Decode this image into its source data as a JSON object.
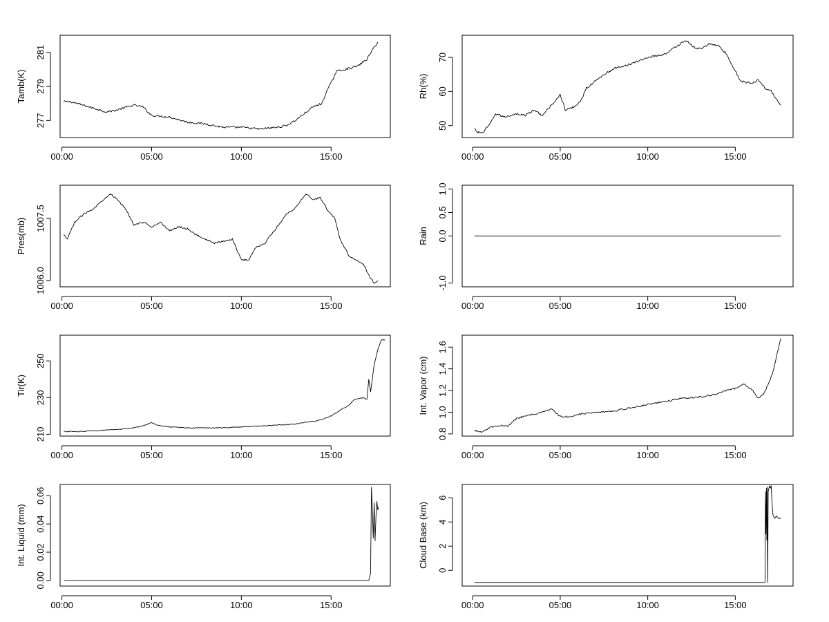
{
  "chart_data": [
    {
      "type": "line",
      "ylabel": "Tamb(K)",
      "xlabel": "",
      "x_ticks": [
        "00:00",
        "05:00",
        "10:00",
        "15:00"
      ],
      "x_range_hours": [
        -0.1,
        18.3
      ],
      "ylim": [
        276.0,
        282.0
      ],
      "y_ticks": [
        "277",
        "279",
        "281"
      ],
      "noise": 0.06,
      "series": [
        {
          "points": [
            [
              0.1,
              278.1
            ],
            [
              0.5,
              278.1
            ],
            [
              1.5,
              277.8
            ],
            [
              2.5,
              277.5
            ],
            [
              3.0,
              277.6
            ],
            [
              4.0,
              277.9
            ],
            [
              4.5,
              277.8
            ],
            [
              5.0,
              277.3
            ],
            [
              6.0,
              277.2
            ],
            [
              7.0,
              276.9
            ],
            [
              8.0,
              276.8
            ],
            [
              9.0,
              276.6
            ],
            [
              10.0,
              276.6
            ],
            [
              11.0,
              276.5
            ],
            [
              12.0,
              276.6
            ],
            [
              12.5,
              276.7
            ],
            [
              13.0,
              277.0
            ],
            [
              13.5,
              277.4
            ],
            [
              14.0,
              277.8
            ],
            [
              14.5,
              278.0
            ],
            [
              14.7,
              278.6
            ],
            [
              15.0,
              279.2
            ],
            [
              15.3,
              279.9
            ],
            [
              15.8,
              280.0
            ],
            [
              16.5,
              280.2
            ],
            [
              17.0,
              280.6
            ],
            [
              17.4,
              281.3
            ],
            [
              17.6,
              281.6
            ]
          ]
        }
      ]
    },
    {
      "type": "line",
      "ylabel": "Rh(%)",
      "xlabel": "",
      "x_ticks": [
        "00:00",
        "05:00",
        "10:00",
        "15:00"
      ],
      "x_range_hours": [
        -0.6,
        18.3
      ],
      "ylim": [
        46.5,
        76.5
      ],
      "y_ticks": [
        "50",
        "60",
        "70"
      ],
      "noise": 0.3,
      "series": [
        {
          "points": [
            [
              0.1,
              49.0
            ],
            [
              0.3,
              48.0
            ],
            [
              0.6,
              48.0
            ],
            [
              1.0,
              50.5
            ],
            [
              1.3,
              53.5
            ],
            [
              1.8,
              52.5
            ],
            [
              2.5,
              53.5
            ],
            [
              3.0,
              53.0
            ],
            [
              3.5,
              54.5
            ],
            [
              4.0,
              53.0
            ],
            [
              4.5,
              56.0
            ],
            [
              5.0,
              59.0
            ],
            [
              5.3,
              54.5
            ],
            [
              5.8,
              55.5
            ],
            [
              6.2,
              57.5
            ],
            [
              6.5,
              61.0
            ],
            [
              7.5,
              65.0
            ],
            [
              8.2,
              67.0
            ],
            [
              9.0,
              68.0
            ],
            [
              10.0,
              70.0
            ],
            [
              11.0,
              71.0
            ],
            [
              12.0,
              74.5
            ],
            [
              12.2,
              75.0
            ],
            [
              12.6,
              73.0
            ],
            [
              13.0,
              72.5
            ],
            [
              13.5,
              74.0
            ],
            [
              14.0,
              73.5
            ],
            [
              14.5,
              71.0
            ],
            [
              15.0,
              66.0
            ],
            [
              15.3,
              63.0
            ],
            [
              16.0,
              62.5
            ],
            [
              16.3,
              63.5
            ],
            [
              16.7,
              61.0
            ],
            [
              17.0,
              60.5
            ],
            [
              17.3,
              58.0
            ],
            [
              17.6,
              56.0
            ]
          ]
        }
      ]
    },
    {
      "type": "line",
      "ylabel": "Pres(mb)",
      "xlabel": "",
      "x_ticks": [
        "00:00",
        "05:00",
        "10:00",
        "15:00"
      ],
      "x_range_hours": [
        -0.1,
        18.3
      ],
      "ylim": [
        1005.85,
        1008.3
      ],
      "y_ticks": [
        "1006.0",
        "1007.5"
      ],
      "noise": 0.02,
      "series": [
        {
          "points": [
            [
              0.1,
              1007.1
            ],
            [
              0.3,
              1007.0
            ],
            [
              0.7,
              1007.4
            ],
            [
              1.2,
              1007.6
            ],
            [
              1.8,
              1007.75
            ],
            [
              2.3,
              1007.95
            ],
            [
              2.7,
              1008.1
            ],
            [
              3.2,
              1007.9
            ],
            [
              3.6,
              1007.7
            ],
            [
              4.0,
              1007.35
            ],
            [
              4.6,
              1007.4
            ],
            [
              5.0,
              1007.3
            ],
            [
              5.5,
              1007.4
            ],
            [
              6.0,
              1007.2
            ],
            [
              6.5,
              1007.3
            ],
            [
              7.0,
              1007.25
            ],
            [
              7.5,
              1007.1
            ],
            [
              8.0,
              1007.0
            ],
            [
              8.5,
              1006.9
            ],
            [
              9.0,
              1006.95
            ],
            [
              9.5,
              1007.0
            ],
            [
              10.0,
              1006.5
            ],
            [
              10.4,
              1006.5
            ],
            [
              10.8,
              1006.8
            ],
            [
              11.3,
              1006.9
            ],
            [
              12.0,
              1007.3
            ],
            [
              12.5,
              1007.6
            ],
            [
              13.0,
              1007.75
            ],
            [
              13.6,
              1008.1
            ],
            [
              14.0,
              1007.95
            ],
            [
              14.4,
              1008.0
            ],
            [
              14.8,
              1007.7
            ],
            [
              15.2,
              1007.5
            ],
            [
              15.5,
              1007.0
            ],
            [
              16.0,
              1006.6
            ],
            [
              16.4,
              1006.5
            ],
            [
              16.8,
              1006.4
            ],
            [
              17.2,
              1006.05
            ],
            [
              17.4,
              1005.95
            ],
            [
              17.6,
              1006.0
            ]
          ]
        }
      ]
    },
    {
      "type": "line",
      "ylabel": "Rain",
      "xlabel": "",
      "x_ticks": [
        "00:00",
        "05:00",
        "10:00",
        "15:00"
      ],
      "x_range_hours": [
        -0.6,
        18.3
      ],
      "ylim": [
        -1.08,
        1.08
      ],
      "y_ticks": [
        "-1.0",
        "0.0",
        "0.5",
        "1.0"
      ],
      "y_tick_values": [
        -1.0,
        0.0,
        0.5,
        1.0
      ],
      "noise": 0,
      "series": [
        {
          "points": [
            [
              0.1,
              0.0
            ],
            [
              17.6,
              0.0
            ]
          ]
        }
      ]
    },
    {
      "type": "line",
      "ylabel": "Tir(K)",
      "xlabel": "",
      "x_ticks": [
        "00:00",
        "05:00",
        "10:00",
        "15:00"
      ],
      "x_range_hours": [
        -0.1,
        18.3
      ],
      "ylim": [
        209,
        264
      ],
      "y_ticks": [
        "210",
        "230",
        "250"
      ],
      "noise": 0.2,
      "series": [
        {
          "points": [
            [
              0.1,
              211.5
            ],
            [
              1.0,
              211.5
            ],
            [
              2.0,
              212.0
            ],
            [
              3.0,
              212.5
            ],
            [
              4.0,
              213.5
            ],
            [
              4.5,
              214.5
            ],
            [
              5.0,
              216.5
            ],
            [
              5.3,
              215.0
            ],
            [
              6.0,
              214.0
            ],
            [
              7.0,
              213.5
            ],
            [
              8.0,
              213.5
            ],
            [
              9.0,
              213.5
            ],
            [
              10.0,
              214.0
            ],
            [
              11.0,
              214.5
            ],
            [
              12.0,
              215.0
            ],
            [
              13.0,
              215.5
            ],
            [
              13.5,
              216.5
            ],
            [
              14.0,
              217.0
            ],
            [
              14.5,
              218.0
            ],
            [
              15.0,
              220.0
            ],
            [
              15.5,
              223.0
            ],
            [
              16.0,
              226.0
            ],
            [
              16.3,
              229.0
            ],
            [
              16.8,
              230.0
            ],
            [
              17.0,
              229.0
            ],
            [
              17.1,
              240.0
            ],
            [
              17.2,
              233.0
            ],
            [
              17.4,
              248.0
            ],
            [
              17.6,
              256.0
            ],
            [
              17.8,
              261.5
            ],
            [
              18.0,
              261.5
            ]
          ]
        }
      ]
    },
    {
      "type": "line",
      "ylabel": "Int. Vapor (cm)",
      "xlabel": "",
      "x_ticks": [
        "00:00",
        "05:00",
        "10:00",
        "15:00"
      ],
      "x_range_hours": [
        -0.6,
        18.3
      ],
      "ylim": [
        0.78,
        1.71
      ],
      "y_ticks": [
        "0.8",
        "1.0",
        "1.2",
        "1.4",
        "1.6"
      ],
      "noise": 0.007,
      "series": [
        {
          "points": [
            [
              0.1,
              0.83
            ],
            [
              0.5,
              0.82
            ],
            [
              1.0,
              0.86
            ],
            [
              1.5,
              0.88
            ],
            [
              2.0,
              0.87
            ],
            [
              2.5,
              0.94
            ],
            [
              3.0,
              0.97
            ],
            [
              3.5,
              0.98
            ],
            [
              4.0,
              1.0
            ],
            [
              4.5,
              1.03
            ],
            [
              5.0,
              0.96
            ],
            [
              5.5,
              0.96
            ],
            [
              6.0,
              0.98
            ],
            [
              7.0,
              1.0
            ],
            [
              8.0,
              1.01
            ],
            [
              9.0,
              1.04
            ],
            [
              10.0,
              1.07
            ],
            [
              11.0,
              1.1
            ],
            [
              12.0,
              1.13
            ],
            [
              13.0,
              1.14
            ],
            [
              14.0,
              1.17
            ],
            [
              14.5,
              1.2
            ],
            [
              15.0,
              1.22
            ],
            [
              15.5,
              1.26
            ],
            [
              16.0,
              1.2
            ],
            [
              16.3,
              1.13
            ],
            [
              16.6,
              1.16
            ],
            [
              17.0,
              1.3
            ],
            [
              17.2,
              1.4
            ],
            [
              17.4,
              1.55
            ],
            [
              17.6,
              1.68
            ]
          ]
        }
      ]
    },
    {
      "type": "line",
      "ylabel": "Int. Liquid (mm)",
      "xlabel": "",
      "x_ticks": [
        "00:00",
        "05:00",
        "10:00",
        "15:00"
      ],
      "x_range_hours": [
        -0.1,
        18.3
      ],
      "ylim": [
        -0.004,
        0.068
      ],
      "y_ticks": [
        "0.00",
        "0.02",
        "0.04",
        "0.06"
      ],
      "noise": 0,
      "series": [
        {
          "points": [
            [
              0.1,
              0.0
            ],
            [
              17.1,
              0.0
            ],
            [
              17.2,
              0.005
            ],
            [
              17.25,
              0.066
            ],
            [
              17.3,
              0.05
            ],
            [
              17.35,
              0.03
            ],
            [
              17.4,
              0.055
            ],
            [
              17.45,
              0.028
            ],
            [
              17.5,
              0.045
            ],
            [
              17.55,
              0.056
            ],
            [
              17.6,
              0.05
            ],
            [
              17.65,
              0.052
            ]
          ]
        }
      ]
    },
    {
      "type": "line",
      "ylabel": "Cloud Base (km)",
      "xlabel": "",
      "x_ticks": [
        "00:00",
        "05:00",
        "10:00",
        "15:00"
      ],
      "x_range_hours": [
        -0.6,
        18.3
      ],
      "ylim": [
        -1.3,
        7.1
      ],
      "y_ticks": [
        "0",
        "2",
        "4",
        "6"
      ],
      "noise": 0,
      "series": [
        {
          "points": [
            [
              0.1,
              -1.0
            ],
            [
              16.7,
              -1.0
            ],
            [
              16.72,
              6.5
            ],
            [
              16.75,
              3.0
            ],
            [
              16.78,
              6.8
            ],
            [
              16.8,
              2.5
            ],
            [
              16.82,
              6.9
            ],
            [
              16.85,
              -1.0
            ],
            [
              16.88,
              6.5
            ],
            [
              16.95,
              7.0
            ],
            [
              17.0,
              6.8
            ],
            [
              17.05,
              7.0
            ],
            [
              17.1,
              5.5
            ],
            [
              17.15,
              4.6
            ],
            [
              17.25,
              4.3
            ],
            [
              17.35,
              4.5
            ],
            [
              17.45,
              4.3
            ],
            [
              17.6,
              4.3
            ]
          ]
        }
      ]
    }
  ]
}
